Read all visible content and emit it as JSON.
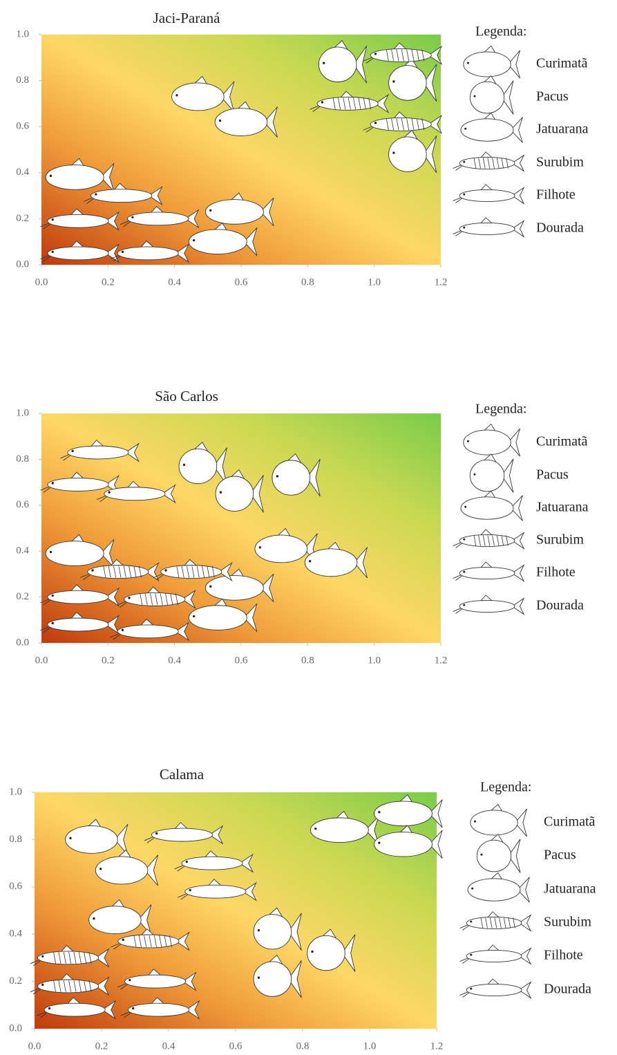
{
  "chart_data": [
    {
      "type": "scatter",
      "title": "Jaci-Paraná",
      "legend_title": "Legenda:",
      "xlim": [
        0,
        1.2
      ],
      "ylim": [
        0,
        1.0
      ],
      "xticks": [
        {
          "value": 0,
          "label": "0.0"
        },
        0.2,
        0.4,
        0.6,
        0.8,
        {
          "value": 1,
          "label": "1.0"
        },
        1.2
      ],
      "yticks": [
        {
          "value": 0,
          "label": "0.0"
        },
        0.2,
        0.4,
        0.6,
        0.8,
        {
          "value": 1,
          "label": "1.0"
        }
      ],
      "series": [
        {
          "name": "Curimatã",
          "color": "#ffffff",
          "x": [
            0.47,
            0.6
          ],
          "y": [
            0.73,
            0.62
          ]
        },
        {
          "name": "Pacus",
          "color": "#ffffff",
          "x": [
            0.89,
            1.1,
            1.1
          ],
          "y": [
            0.87,
            0.79,
            0.48
          ]
        },
        {
          "name": "Jatuarana",
          "color": "#ffffff",
          "x": [
            0.1,
            0.58,
            0.53
          ],
          "y": [
            0.38,
            0.23,
            0.1
          ]
        },
        {
          "name": "Surubim",
          "color": "#ffffff",
          "x": [
            1.08,
            0.92,
            1.08
          ],
          "y": [
            0.91,
            0.7,
            0.61
          ]
        },
        {
          "name": "Filhote",
          "color": "#ffffff",
          "x": [
            0.24,
            0.11,
            0.35
          ],
          "y": [
            0.3,
            0.19,
            0.2
          ]
        },
        {
          "name": "Dourada",
          "color": "#ffffff",
          "x": [
            0.11,
            0.32
          ],
          "y": [
            0.05,
            0.05
          ]
        }
      ]
    },
    {
      "type": "scatter",
      "title": "São Carlos",
      "legend_title": "Legenda:",
      "xlim": [
        0,
        1.2
      ],
      "ylim": [
        0,
        1.0
      ],
      "xticks": [
        {
          "value": 0,
          "label": "0.0"
        },
        0.2,
        0.4,
        0.6,
        0.8,
        {
          "value": 1,
          "label": "1.0"
        },
        1.2
      ],
      "yticks": [
        {
          "value": 0,
          "label": "0.0"
        },
        0.2,
        0.4,
        0.6,
        0.8,
        {
          "value": 1,
          "label": "1.0"
        }
      ],
      "series": [
        {
          "name": "Curimatã",
          "color": "#ffffff",
          "x": [
            0.72,
            0.87
          ],
          "y": [
            0.41,
            0.35
          ]
        },
        {
          "name": "Pacus",
          "color": "#ffffff",
          "x": [
            0.47,
            0.58,
            0.75
          ],
          "y": [
            0.77,
            0.65,
            0.72
          ]
        },
        {
          "name": "Jatuarana",
          "color": "#ffffff",
          "x": [
            0.1,
            0.58,
            0.53
          ],
          "y": [
            0.39,
            0.24,
            0.11
          ]
        },
        {
          "name": "Surubim",
          "color": "#ffffff",
          "x": [
            0.23,
            0.45,
            0.34
          ],
          "y": [
            0.31,
            0.31,
            0.19
          ]
        },
        {
          "name": "Filhote",
          "color": "#ffffff",
          "x": [
            0.17,
            0.11,
            0.28,
            0.11
          ],
          "y": [
            0.83,
            0.69,
            0.65,
            0.2
          ]
        },
        {
          "name": "Dourada",
          "color": "#ffffff",
          "x": [
            0.11,
            0.32
          ],
          "y": [
            0.08,
            0.05
          ]
        }
      ]
    },
    {
      "type": "scatter",
      "title": "Calama",
      "legend_title": "Legenda:",
      "xlim": [
        0,
        1.2
      ],
      "ylim": [
        0,
        1.0
      ],
      "xticks": [
        {
          "value": 0,
          "label": "0.0"
        },
        0.2,
        0.4,
        0.6,
        0.8,
        {
          "value": 1,
          "label": "1.0"
        },
        1.2
      ],
      "yticks": [
        {
          "value": 0,
          "label": "0.0"
        },
        0.2,
        0.4,
        0.6,
        0.8,
        {
          "value": 1,
          "label": "1.0"
        }
      ],
      "series": [
        {
          "name": "Curimatã",
          "color": "#ffffff",
          "x": [
            0.17,
            0.26,
            0.24
          ],
          "y": [
            0.8,
            0.67,
            0.46
          ]
        },
        {
          "name": "Pacus",
          "color": "#ffffff",
          "x": [
            0.71,
            0.87,
            0.71
          ],
          "y": [
            0.41,
            0.32,
            0.21
          ]
        },
        {
          "name": "Jatuarana",
          "color": "#ffffff",
          "x": [
            0.91,
            1.1,
            1.1
          ],
          "y": [
            0.84,
            0.91,
            0.78
          ]
        },
        {
          "name": "Surubim",
          "color": "#ffffff",
          "x": [
            0.34,
            0.1,
            0.1
          ],
          "y": [
            0.37,
            0.3,
            0.18
          ]
        },
        {
          "name": "Filhote",
          "color": "#ffffff",
          "x": [
            0.44,
            0.53,
            0.54,
            0.36
          ],
          "y": [
            0.82,
            0.7,
            0.58,
            0.2
          ]
        },
        {
          "name": "Dourada",
          "color": "#ffffff",
          "x": [
            0.12,
            0.37
          ],
          "y": [
            0.08,
            0.08
          ]
        }
      ]
    }
  ]
}
